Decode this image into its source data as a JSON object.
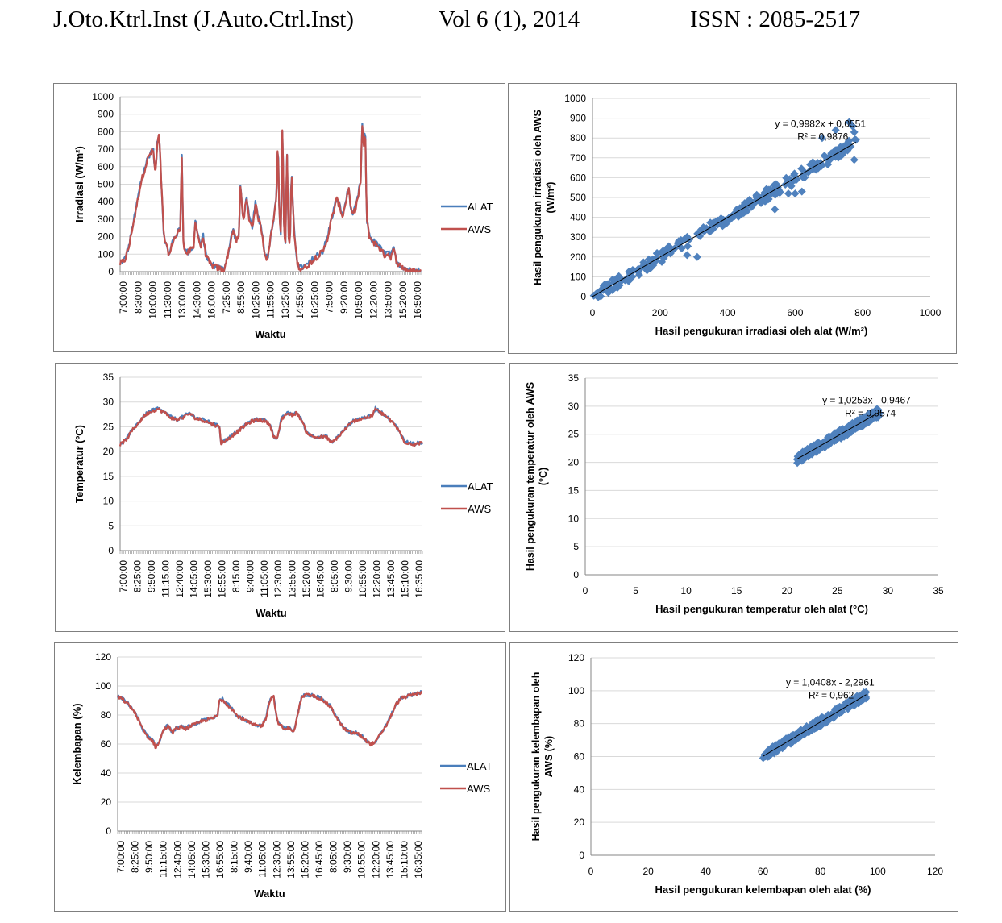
{
  "header": {
    "journal": "J.Oto.Ktrl.Inst (J.Auto.Ctrl.Inst)",
    "volume": "Vol 6 (1), 2014",
    "issn": "ISSN : 2085-2517"
  },
  "colors": {
    "alat": "#4a7ebb",
    "aws": "#c0504d",
    "scatter": "#4f81bd",
    "grid": "#d9d9d9",
    "axis": "#868686",
    "trend": "#000000"
  },
  "chart_data": [
    {
      "id": "irr-ts",
      "type": "line",
      "xlabel": "Waktu",
      "ylabel": "Irradiasi (W/m²)",
      "ylim": [
        0,
        1000
      ],
      "yticks": [
        0,
        100,
        200,
        300,
        400,
        500,
        600,
        700,
        800,
        900,
        1000
      ],
      "categories": [
        "7:00:00",
        "8:30:00",
        "10:00:00",
        "11:30:00",
        "13:00:00",
        "14:30:00",
        "16:00:00",
        "7:25:00",
        "8:55:00",
        "10:25:00",
        "11:55:00",
        "13:25:00",
        "14:55:00",
        "16:25:00",
        "7:50:00",
        "9:20:00",
        "10:50:00",
        "12:20:00",
        "13:50:00",
        "15:20:00",
        "16:50:00"
      ],
      "legend": [
        "ALAT",
        "AWS"
      ],
      "legend_position": "right",
      "series_base": [
        [
          0,
          50
        ],
        [
          0.3,
          70
        ],
        [
          0.6,
          150
        ],
        [
          0.8,
          250
        ],
        [
          1.0,
          330
        ],
        [
          1.2,
          430
        ],
        [
          1.4,
          520
        ],
        [
          1.6,
          580
        ],
        [
          1.8,
          640
        ],
        [
          2.0,
          680
        ],
        [
          2.2,
          700
        ],
        [
          2.35,
          560
        ],
        [
          2.5,
          760
        ],
        [
          2.6,
          780
        ],
        [
          2.7,
          600
        ],
        [
          2.9,
          220
        ],
        [
          3.1,
          140
        ],
        [
          3.3,
          100
        ],
        [
          3.5,
          180
        ],
        [
          3.8,
          220
        ],
        [
          4.0,
          250
        ],
        [
          4.1,
          700
        ],
        [
          4.2,
          200
        ],
        [
          4.3,
          120
        ],
        [
          4.5,
          110
        ],
        [
          4.7,
          130
        ],
        [
          4.9,
          140
        ],
        [
          5.0,
          300
        ],
        [
          5.2,
          200
        ],
        [
          5.4,
          140
        ],
        [
          5.5,
          220
        ],
        [
          5.7,
          100
        ],
        [
          5.9,
          60
        ],
        [
          6.1,
          40
        ],
        [
          6.4,
          30
        ],
        [
          6.7,
          20
        ],
        [
          6.9,
          10
        ],
        [
          7.1,
          80
        ],
        [
          7.3,
          150
        ],
        [
          7.5,
          250
        ],
        [
          7.7,
          180
        ],
        [
          7.9,
          200
        ],
        [
          8.0,
          490
        ],
        [
          8.2,
          300
        ],
        [
          8.4,
          420
        ],
        [
          8.6,
          300
        ],
        [
          8.8,
          260
        ],
        [
          9.0,
          390
        ],
        [
          9.2,
          310
        ],
        [
          9.4,
          250
        ],
        [
          9.6,
          120
        ],
        [
          9.8,
          70
        ],
        [
          10.0,
          200
        ],
        [
          10.2,
          300
        ],
        [
          10.4,
          450
        ],
        [
          10.5,
          760
        ],
        [
          10.6,
          300
        ],
        [
          10.7,
          200
        ],
        [
          10.8,
          880
        ],
        [
          10.9,
          250
        ],
        [
          11.0,
          160
        ],
        [
          11.1,
          700
        ],
        [
          11.2,
          200
        ],
        [
          11.3,
          150
        ],
        [
          11.4,
          600
        ],
        [
          11.5,
          350
        ],
        [
          11.6,
          200
        ],
        [
          11.8,
          50
        ],
        [
          12.0,
          20
        ],
        [
          12.3,
          30
        ],
        [
          12.6,
          50
        ],
        [
          12.9,
          80
        ],
        [
          13.2,
          100
        ],
        [
          13.5,
          120
        ],
        [
          13.8,
          200
        ],
        [
          14.0,
          280
        ],
        [
          14.2,
          350
        ],
        [
          14.4,
          420
        ],
        [
          14.6,
          380
        ],
        [
          14.8,
          320
        ],
        [
          15.0,
          400
        ],
        [
          15.2,
          480
        ],
        [
          15.4,
          330
        ],
        [
          15.6,
          350
        ],
        [
          15.8,
          420
        ],
        [
          16.0,
          520
        ],
        [
          16.1,
          850
        ],
        [
          16.2,
          700
        ],
        [
          16.3,
          840
        ],
        [
          16.4,
          300
        ],
        [
          16.6,
          200
        ],
        [
          16.8,
          180
        ],
        [
          17.0,
          160
        ],
        [
          17.2,
          150
        ],
        [
          17.4,
          120
        ],
        [
          17.6,
          100
        ],
        [
          17.8,
          110
        ],
        [
          18.0,
          90
        ],
        [
          18.2,
          130
        ],
        [
          18.4,
          60
        ],
        [
          18.6,
          40
        ],
        [
          18.8,
          30
        ],
        [
          19.0,
          20
        ],
        [
          19.2,
          10
        ],
        [
          19.5,
          5
        ],
        [
          20.0,
          5
        ]
      ],
      "noise": 18
    },
    {
      "id": "irr-sc",
      "type": "scatter",
      "xlabel": "Hasil pengukuran irradiasi oleh alat (W/m²)",
      "ylabel_lines": [
        "Hasil pengukuran irradiasi oleh AWS",
        "(W/m²)"
      ],
      "xlim": [
        0,
        1000
      ],
      "ylim": [
        0,
        1000
      ],
      "xticks": [
        0,
        200,
        400,
        600,
        800,
        1000
      ],
      "yticks": [
        0,
        100,
        200,
        300,
        400,
        500,
        600,
        700,
        800,
        900,
        1000
      ],
      "slope": 0.9982,
      "intercept": 0.0551,
      "x_range": [
        0,
        780
      ],
      "equation": "y = 0,9982x + 0,0551",
      "r2": "R² = 0,9876",
      "eq_anchor": [
        540,
        855
      ],
      "spread": 30
    },
    {
      "id": "tmp-ts",
      "type": "line",
      "xlabel": "Waktu",
      "ylabel": "Temperatur (ºC)",
      "ylim": [
        0,
        35
      ],
      "yticks": [
        0,
        5,
        10,
        15,
        20,
        25,
        30,
        35
      ],
      "categories": [
        "7:00:00",
        "8:25:00",
        "9:50:00",
        "11:15:00",
        "12:40:00",
        "14:05:00",
        "15:30:00",
        "16:55:00",
        "8:15:00",
        "9:40:00",
        "11:05:00",
        "12:30:00",
        "13:55:00",
        "15:20:00",
        "16:45:00",
        "8:05:00",
        "9:30:00",
        "10:55:00",
        "12:20:00",
        "13:45:00",
        "15:10:00",
        "16:35:00"
      ],
      "legend": [
        "ALAT",
        "AWS"
      ],
      "legend_position": "right",
      "series_base": [
        [
          0,
          21.5
        ],
        [
          0.5,
          22.5
        ],
        [
          1.0,
          24.5
        ],
        [
          1.5,
          26.0
        ],
        [
          2.0,
          27.5
        ],
        [
          2.5,
          28.3
        ],
        [
          3.0,
          28.7
        ],
        [
          3.5,
          28.0
        ],
        [
          4.0,
          27.0
        ],
        [
          4.5,
          26.5
        ],
        [
          5.0,
          27.0
        ],
        [
          5.5,
          27.8
        ],
        [
          6.0,
          26.8
        ],
        [
          6.5,
          26.5
        ],
        [
          7.0,
          26.0
        ],
        [
          7.5,
          25.5
        ],
        [
          7.9,
          25.0
        ],
        [
          8.0,
          21.8
        ],
        [
          8.5,
          22.5
        ],
        [
          9.0,
          23.5
        ],
        [
          9.5,
          24.5
        ],
        [
          10.0,
          25.5
        ],
        [
          10.5,
          26.3
        ],
        [
          11.0,
          26.5
        ],
        [
          11.5,
          26.3
        ],
        [
          11.9,
          25.5
        ],
        [
          12.2,
          23.0
        ],
        [
          12.5,
          22.8
        ],
        [
          12.8,
          26.5
        ],
        [
          13.2,
          27.8
        ],
        [
          13.6,
          27.5
        ],
        [
          14.0,
          27.9
        ],
        [
          14.4,
          26.5
        ],
        [
          14.8,
          24.0
        ],
        [
          15.2,
          23.2
        ],
        [
          15.6,
          23.0
        ],
        [
          16.0,
          23.0
        ],
        [
          16.4,
          23.0
        ],
        [
          16.8,
          21.8
        ],
        [
          17.2,
          22.8
        ],
        [
          17.6,
          23.8
        ],
        [
          18.0,
          25.0
        ],
        [
          18.4,
          26.0
        ],
        [
          18.8,
          26.5
        ],
        [
          19.2,
          26.8
        ],
        [
          19.6,
          27.0
        ],
        [
          20.0,
          27.2
        ],
        [
          20.3,
          28.9
        ],
        [
          20.6,
          28.0
        ],
        [
          21.0,
          27.5
        ],
        [
          21.4,
          26.5
        ],
        [
          21.8,
          25.5
        ],
        [
          22.2,
          24.0
        ],
        [
          22.6,
          22.0
        ],
        [
          23.0,
          21.8
        ],
        [
          23.4,
          21.5
        ],
        [
          23.8,
          21.8
        ],
        [
          24.0,
          21.8
        ]
      ],
      "x_max": 24,
      "noise": 0.35
    },
    {
      "id": "tmp-sc",
      "type": "scatter",
      "xlabel": "Hasil pengukuran temperatur oleh alat (°C)",
      "ylabel_lines": [
        "Hasil pengukuran temperatur oleh AWS",
        "(°C)"
      ],
      "xlim": [
        0,
        35
      ],
      "ylim": [
        0,
        35
      ],
      "xticks": [
        0,
        5,
        10,
        15,
        20,
        25,
        30,
        35
      ],
      "yticks": [
        0,
        5,
        10,
        15,
        20,
        25,
        30,
        35
      ],
      "slope": 1.0253,
      "intercept": -0.9467,
      "x_range": [
        21,
        29.2
      ],
      "equation": "y = 1,0253x - 0,9467",
      "r2": "R² = 0,9574",
      "eq_anchor": [
        23.5,
        30.5
      ],
      "spread": 0.8
    },
    {
      "id": "hum-ts",
      "type": "line",
      "xlabel": "Waktu",
      "ylabel": "Kelembapan (%)",
      "ylim": [
        0,
        120
      ],
      "yticks": [
        0,
        20,
        40,
        60,
        80,
        100,
        120
      ],
      "categories": [
        "7:00:00",
        "8:25:00",
        "9:50:00",
        "11:15:00",
        "12:40:00",
        "14:05:00",
        "15:30:00",
        "16:55:00",
        "8:15:00",
        "9:40:00",
        "11:05:00",
        "12:30:00",
        "13:55:00",
        "15:20:00",
        "16:45:00",
        "8:05:00",
        "9:30:00",
        "10:55:00",
        "12:20:00",
        "13:45:00",
        "15:10:00",
        "16:35:00"
      ],
      "legend": [
        "ALAT",
        "AWS"
      ],
      "legend_position": "right",
      "series_base": [
        [
          0,
          93
        ],
        [
          0.4,
          91
        ],
        [
          0.8,
          88
        ],
        [
          1.2,
          84
        ],
        [
          1.6,
          78
        ],
        [
          2.0,
          70
        ],
        [
          2.4,
          65
        ],
        [
          2.8,
          62
        ],
        [
          3.0,
          58
        ],
        [
          3.3,
          62
        ],
        [
          3.6,
          70
        ],
        [
          4.0,
          73
        ],
        [
          4.3,
          68
        ],
        [
          4.6,
          71
        ],
        [
          5.0,
          72
        ],
        [
          5.4,
          71
        ],
        [
          5.8,
          73
        ],
        [
          6.2,
          74
        ],
        [
          6.6,
          76
        ],
        [
          7.0,
          77
        ],
        [
          7.5,
          78
        ],
        [
          7.9,
          80
        ],
        [
          8.0,
          90
        ],
        [
          8.3,
          91
        ],
        [
          8.6,
          88
        ],
        [
          9.0,
          85
        ],
        [
          9.4,
          80
        ],
        [
          9.8,
          78
        ],
        [
          10.2,
          76
        ],
        [
          10.6,
          74
        ],
        [
          11.0,
          73
        ],
        [
          11.4,
          73
        ],
        [
          11.7,
          78
        ],
        [
          12.0,
          90
        ],
        [
          12.3,
          94
        ],
        [
          12.6,
          76
        ],
        [
          12.9,
          73
        ],
        [
          13.2,
          70
        ],
        [
          13.6,
          72
        ],
        [
          13.9,
          68
        ],
        [
          14.2,
          80
        ],
        [
          14.5,
          92
        ],
        [
          14.8,
          94
        ],
        [
          15.2,
          94
        ],
        [
          15.6,
          93
        ],
        [
          16.0,
          92
        ],
        [
          16.4,
          89
        ],
        [
          16.8,
          86
        ],
        [
          17.2,
          80
        ],
        [
          17.6,
          74
        ],
        [
          18.0,
          70
        ],
        [
          18.4,
          68
        ],
        [
          18.8,
          68
        ],
        [
          19.2,
          66
        ],
        [
          19.6,
          63
        ],
        [
          20.0,
          60
        ],
        [
          20.4,
          62
        ],
        [
          20.8,
          68
        ],
        [
          21.2,
          73
        ],
        [
          21.6,
          80
        ],
        [
          22.0,
          88
        ],
        [
          22.4,
          92
        ],
        [
          22.8,
          93
        ],
        [
          23.2,
          94
        ],
        [
          23.6,
          95
        ],
        [
          24.0,
          96
        ]
      ],
      "x_max": 24,
      "noise": 1.2
    },
    {
      "id": "hum-sc",
      "type": "scatter",
      "xlabel": "Hasil pengukuran kelembapan oleh alat (%)",
      "ylabel_lines": [
        "Hasil pengukuran kelembapan oleh",
        "AWS (%)"
      ],
      "xlim": [
        0,
        120
      ],
      "ylim": [
        0,
        120
      ],
      "xticks": [
        0,
        20,
        40,
        60,
        80,
        100,
        120
      ],
      "yticks": [
        0,
        20,
        40,
        60,
        80,
        100,
        120
      ],
      "slope": 1.0408,
      "intercept": -2.2961,
      "x_range": [
        60,
        96
      ],
      "equation": "y = 1,0408x - 2,2961",
      "r2": "R² = 0,962",
      "eq_anchor": [
        68,
        103
      ],
      "spread": 2.5
    }
  ]
}
